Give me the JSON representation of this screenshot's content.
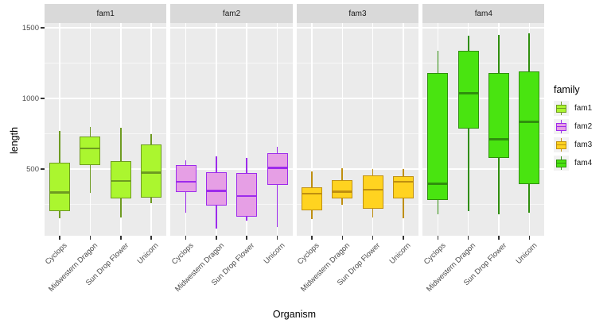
{
  "chart_data": {
    "type": "boxplot",
    "title": "",
    "xlabel": "Organism",
    "ylabel": "length",
    "facet_variable": "family",
    "categories": [
      "Cyclops",
      "Midwestern Dragon",
      "Sun Drop Flower",
      "Unicorn"
    ],
    "y_ticks": [
      500,
      1000,
      1500
    ],
    "y_minor_ticks": [
      250,
      750,
      1250
    ],
    "ylim": [
      28,
      1534
    ],
    "grid": "on",
    "legend_position": "right",
    "colors": {
      "panel_background": "#EBEBEB",
      "strip_background": "#D9D9D9",
      "gridline": "#FFFFFF",
      "tick_mark": "#333333",
      "tick_label": "#4D4D4D",
      "legend_key_background": "#F2F2F2"
    },
    "legend": {
      "title": "family"
    },
    "series": [
      {
        "name": "fam1",
        "fill": "#ABF62F",
        "stroke": "#6E9B21",
        "boxes": [
          {
            "organism": "Cyclops",
            "min": 150,
            "q1": 200,
            "median": 335,
            "q3": 545,
            "max": 770
          },
          {
            "organism": "Midwestern Dragon",
            "min": 330,
            "q1": 530,
            "median": 645,
            "q3": 730,
            "max": 800
          },
          {
            "organism": "Sun Drop Flower",
            "min": 160,
            "q1": 290,
            "median": 415,
            "q3": 555,
            "max": 790
          },
          {
            "organism": "Unicorn",
            "min": 258,
            "q1": 297,
            "median": 476,
            "q3": 672,
            "max": 745
          }
        ]
      },
      {
        "name": "fam2",
        "fill": "#E69FE5",
        "stroke": "#9D2BEC",
        "boxes": [
          {
            "organism": "Cyclops",
            "min": 190,
            "q1": 335,
            "median": 410,
            "q3": 530,
            "max": 560
          },
          {
            "organism": "Midwestern Dragon",
            "min": 80,
            "q1": 240,
            "median": 345,
            "q3": 480,
            "max": 590
          },
          {
            "organism": "Sun Drop Flower",
            "min": 135,
            "q1": 165,
            "median": 310,
            "q3": 470,
            "max": 580
          },
          {
            "organism": "Unicorn",
            "min": 90,
            "q1": 385,
            "median": 510,
            "q3": 610,
            "max": 655
          }
        ]
      },
      {
        "name": "fam3",
        "fill": "#FFD320",
        "stroke": "#BF8F10",
        "boxes": [
          {
            "organism": "Cyclops",
            "min": 145,
            "q1": 205,
            "median": 325,
            "q3": 370,
            "max": 485
          },
          {
            "organism": "Midwestern Dragon",
            "min": 245,
            "q1": 290,
            "median": 340,
            "q3": 420,
            "max": 505
          },
          {
            "organism": "Sun Drop Flower",
            "min": 160,
            "q1": 220,
            "median": 355,
            "q3": 455,
            "max": 500
          },
          {
            "organism": "Unicorn",
            "min": 150,
            "q1": 290,
            "median": 410,
            "q3": 450,
            "max": 500
          }
        ]
      },
      {
        "name": "fam4",
        "fill": "#49E410",
        "stroke": "#2F8F0D",
        "boxes": [
          {
            "organism": "Cyclops",
            "min": 178,
            "q1": 278,
            "median": 397,
            "q3": 1180,
            "max": 1340
          },
          {
            "organism": "Midwestern Dragon",
            "min": 200,
            "q1": 785,
            "median": 1035,
            "q3": 1335,
            "max": 1445
          },
          {
            "organism": "Sun Drop Flower",
            "min": 180,
            "q1": 580,
            "median": 710,
            "q3": 1178,
            "max": 1450
          },
          {
            "organism": "Unicorn",
            "min": 190,
            "q1": 392,
            "median": 835,
            "q3": 1190,
            "max": 1460
          }
        ]
      }
    ]
  }
}
